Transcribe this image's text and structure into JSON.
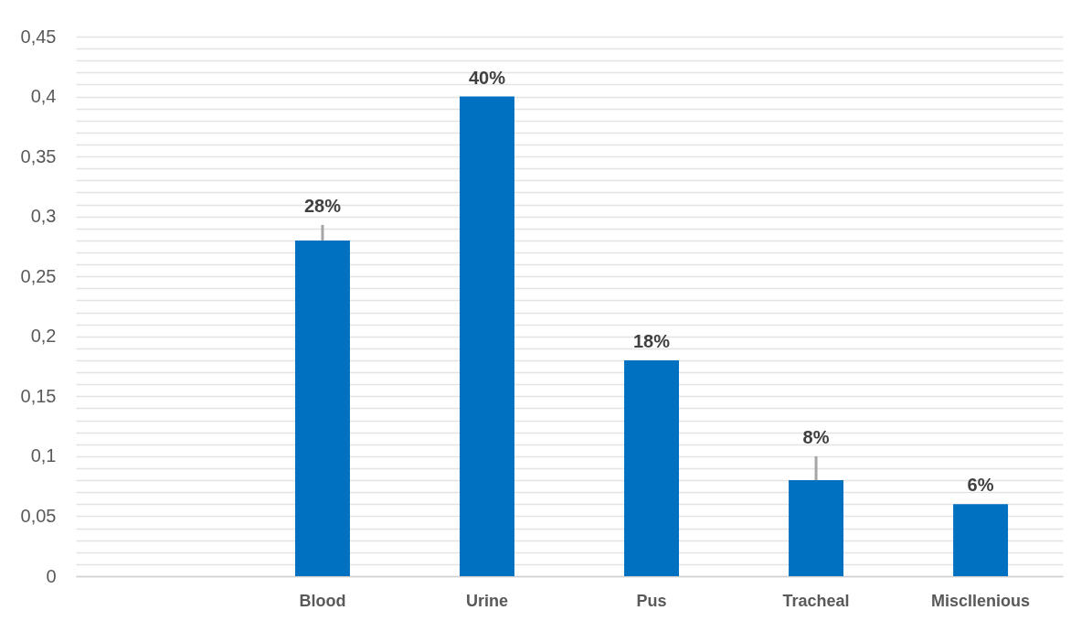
{
  "chart_data": {
    "type": "bar",
    "categories": [
      null,
      "Blood",
      "Urine",
      "Pus",
      "Tracheal",
      "Miscllenious"
    ],
    "values": [
      null,
      0.28,
      0.4,
      0.18,
      0.08,
      0.06
    ],
    "color": "#0070c0",
    "errors": [
      null,
      [
        0.28,
        0.293
      ],
      null,
      null,
      [
        0.08,
        0.1
      ],
      null
    ],
    "value_labels": [
      null,
      "28%",
      "40%",
      "18%",
      "8%",
      "6%"
    ],
    "ylim": [
      0,
      0.45
    ],
    "yticks": [
      {
        "value": 0,
        "label": "0"
      },
      {
        "value": 0.01,
        "label": null
      },
      {
        "value": 0.02,
        "label": null
      },
      {
        "value": 0.03,
        "label": null
      },
      {
        "value": 0.04,
        "label": null
      },
      {
        "value": 0.05,
        "label": "0,05"
      },
      {
        "value": 0.06,
        "label": null
      },
      {
        "value": 0.07,
        "label": null
      },
      {
        "value": 0.08,
        "label": null
      },
      {
        "value": 0.09,
        "label": null
      },
      {
        "value": 0.1,
        "label": "0,1"
      },
      {
        "value": 0.11,
        "label": null
      },
      {
        "value": 0.12,
        "label": null
      },
      {
        "value": 0.13,
        "label": null
      },
      {
        "value": 0.14,
        "label": null
      },
      {
        "value": 0.15,
        "label": "0,15"
      },
      {
        "value": 0.16,
        "label": null
      },
      {
        "value": 0.17,
        "label": null
      },
      {
        "value": 0.18,
        "label": null
      },
      {
        "value": 0.19,
        "label": null
      },
      {
        "value": 0.2,
        "label": "0,2"
      },
      {
        "value": 0.21,
        "label": null
      },
      {
        "value": 0.22,
        "label": null
      },
      {
        "value": 0.23,
        "label": null
      },
      {
        "value": 0.24,
        "label": null
      },
      {
        "value": 0.25,
        "label": "0,25"
      },
      {
        "value": 0.26,
        "label": null
      },
      {
        "value": 0.27,
        "label": null
      },
      {
        "value": 0.28,
        "label": null
      },
      {
        "value": 0.29,
        "label": null
      },
      {
        "value": 0.3,
        "label": "0,3"
      },
      {
        "value": 0.31,
        "label": null
      },
      {
        "value": 0.32,
        "label": null
      },
      {
        "value": 0.33,
        "label": null
      },
      {
        "value": 0.34,
        "label": null
      },
      {
        "value": 0.35,
        "label": "0,35"
      },
      {
        "value": 0.36,
        "label": null
      },
      {
        "value": 0.37,
        "label": null
      },
      {
        "value": 0.38,
        "label": null
      },
      {
        "value": 0.39,
        "label": null
      },
      {
        "value": 0.4,
        "label": "0,4"
      },
      {
        "value": 0.41,
        "label": null
      },
      {
        "value": 0.42,
        "label": null
      },
      {
        "value": 0.43,
        "label": null
      },
      {
        "value": 0.44,
        "label": null
      },
      {
        "value": 0.45,
        "label": "0,45"
      }
    ],
    "grid": "y"
  }
}
